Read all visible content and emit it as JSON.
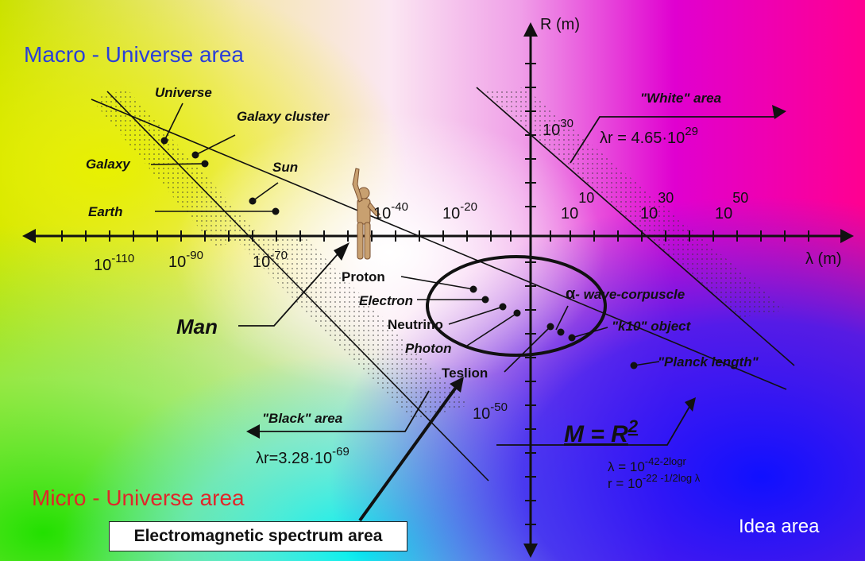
{
  "areas": {
    "macro": "Macro - Universe area",
    "micro": "Micro - Universe area",
    "idea": "Idea area",
    "electromagnetic": "Electromagnetic spectrum area",
    "white": "\"White\" area",
    "black": "\"Black\" area"
  },
  "axes": {
    "y_label": "R (m)",
    "x_label": "λ (m)"
  },
  "ticks": {
    "y_top_base": "10",
    "y_top_exp": "30",
    "y_bottom_base": "10",
    "y_bottom_exp": "-50",
    "x_neg_110_base": "10",
    "x_neg_110_exp": "-110",
    "x_neg_90_base": "10",
    "x_neg_90_exp": "-90",
    "x_neg_70_base": "10",
    "x_neg_70_exp": "-70",
    "x_neg_40_base": "10",
    "x_neg_40_exp": "-40",
    "x_neg_20_base": "10",
    "x_neg_20_exp": "-20",
    "x_pos_10_base": "10",
    "x_pos_10_exp": "10",
    "x_pos_30_base": "10",
    "x_pos_30_exp": "30",
    "x_pos_50_base": "10",
    "x_pos_50_exp": "50"
  },
  "objects": {
    "universe": "Universe",
    "galaxy_cluster": "Galaxy cluster",
    "galaxy": "Galaxy",
    "sun": "Sun",
    "earth": "Earth",
    "man": "Man",
    "proton": "Proton",
    "electron": "Electron",
    "neutrino": "Neutrino",
    "photon": "Photon",
    "teslion": "Teslion",
    "wave_corpuscle_prefix": "α",
    "wave_corpuscle": "- wave-corpuscle",
    "k10": "\"k10\" object",
    "planck": "\"Planck length\""
  },
  "formulas": {
    "white_base": "λr = 4.65·10",
    "white_exp": "29",
    "black_base": "λr=3.28·10",
    "black_exp": "-69",
    "mass_base": "M = R",
    "mass_exp": "2",
    "lambda_base": "λ = 10",
    "lambda_exp": "-42-2logr",
    "r_base": "r = 10",
    "r_exp": "-22 -1/2log λ"
  },
  "colors": {
    "macro_text": "#2a3fd8",
    "micro_text": "#e0262a",
    "idea_text": "#ffffff",
    "ink": "#111111"
  }
}
